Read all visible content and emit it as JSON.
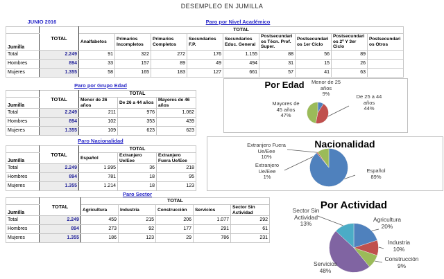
{
  "page": {
    "title": "DESEMPLEO EN JUMILLA"
  },
  "colors": {
    "table_title_blue": "#2929c8",
    "total_value_navy": "#26269b",
    "total_cell_bg": "#ececec",
    "pie_blue": "#4F81BD",
    "pie_red": "#C0504D",
    "pie_green": "#9BBB59",
    "pie_purple": "#8064A2",
    "pie_cyan": "#4BACC6"
  },
  "tables": {
    "nivel": {
      "corner_label": "JUNIO 2016",
      "title": "Paro por Nivel Académico",
      "entity_label": "Jumilla",
      "total_col_label": "TOTAL",
      "group_label": "TOTAL",
      "columns": [
        "Analfabetos",
        "Primarios Incompletos",
        "Primarios Completos",
        "Secundarios F.P.",
        "Secundarios Educ. General",
        "Postsecundarios Técn. Prof. Super.",
        "Postsecundarios 1er Ciclo",
        "Postsecundarios 2º Y 3er Ciclo",
        "Postsecundarios Otros"
      ],
      "rows": [
        {
          "label": "Total",
          "total": "2.249",
          "values": [
            "91",
            "322",
            "272",
            "176",
            "1.155",
            "88",
            "56",
            "89",
            ""
          ]
        },
        {
          "label": "Hombres",
          "total": "894",
          "values": [
            "33",
            "157",
            "89",
            "49",
            "494",
            "31",
            "15",
            "26",
            ""
          ]
        },
        {
          "label": "Mujeres",
          "total": "1.355",
          "values": [
            "58",
            "165",
            "183",
            "127",
            "661",
            "57",
            "41",
            "63",
            ""
          ]
        }
      ]
    },
    "edad": {
      "title": "Paro por Grupo Edad",
      "entity_label": "Jumilla",
      "total_col_label": "TOTAL",
      "group_label": "TOTAL",
      "columns": [
        "Menor de 26 años",
        "De 26 a 44 años",
        "Mayores de 46 años"
      ],
      "rows": [
        {
          "label": "Total",
          "total": "2.249",
          "values": [
            "211",
            "976",
            "1.062"
          ]
        },
        {
          "label": "Hombres",
          "total": "894",
          "values": [
            "102",
            "353",
            "439"
          ]
        },
        {
          "label": "Mujeres",
          "total": "1.355",
          "values": [
            "109",
            "623",
            "623"
          ]
        }
      ]
    },
    "nacionalidad": {
      "title": "Paro Nacionalidad",
      "entity_label": "Jumilla",
      "total_col_label": "TOTAL",
      "group_label": "TOTAL",
      "columns": [
        "Español",
        "Extranjero Ue/Eee",
        "Extranjero Fuera Ue/Eee"
      ],
      "rows": [
        {
          "label": "Total",
          "total": "2.249",
          "values": [
            "1.995",
            "36",
            "218"
          ]
        },
        {
          "label": "Hombres",
          "total": "894",
          "values": [
            "781",
            "18",
            "95"
          ]
        },
        {
          "label": "Mujeres",
          "total": "1.355",
          "values": [
            "1.214",
            "18",
            "123"
          ]
        }
      ]
    },
    "sector": {
      "title": "Paro Sector",
      "entity_label": "Jumilla",
      "total_col_label": "TOTAL",
      "group_label": "TOTAL",
      "columns": [
        "Agricultura",
        "Industria",
        "Construcción",
        "Servicios",
        "Sector Sin Actividad"
      ],
      "rows": [
        {
          "label": "Total",
          "total": "2.249",
          "values": [
            "459",
            "215",
            "206",
            "1.077",
            "292"
          ]
        },
        {
          "label": "Hombres",
          "total": "894",
          "values": [
            "273",
            "92",
            "177",
            "291",
            "61"
          ]
        },
        {
          "label": "Mujeres",
          "total": "1.355",
          "values": [
            "186",
            "123",
            "29",
            "786",
            "231"
          ]
        }
      ]
    }
  },
  "chart_data": [
    {
      "type": "pie",
      "title": "Por Edad",
      "labels": [
        "Menor de 25 años",
        "De 25 a 44 años",
        "Mayores de 45 años"
      ],
      "values": [
        9,
        44,
        47
      ],
      "unit": "%",
      "colors": [
        "#4F81BD",
        "#C0504D",
        "#9BBB59"
      ],
      "legend_position": "callouts",
      "callouts": [
        {
          "text": "Menor de 25\naños\n9%"
        },
        {
          "text": "De 25 a 44\naños\n44%"
        },
        {
          "text": "Mayores de\n45 años\n47%"
        }
      ]
    },
    {
      "type": "pie",
      "title": "Nacionalidad",
      "labels": [
        "Español",
        "Extranjero Ue/Eee",
        "Extranjero Fuera Ue/Eee"
      ],
      "values": [
        89,
        1,
        10
      ],
      "unit": "%",
      "colors": [
        "#4F81BD",
        "#C0504D",
        "#9BBB59"
      ],
      "legend_position": "callouts",
      "callouts": [
        {
          "text": "Extranjero Fuera\nUe/Eee\n10%"
        },
        {
          "text": "Extranjero\nUe/Eee\n1%"
        },
        {
          "text": "Español\n89%"
        }
      ]
    },
    {
      "type": "pie",
      "title": "Por Actividad",
      "labels": [
        "Agricultura",
        "Industria",
        "Construcción",
        "Servicios",
        "Sector Sin Actividad"
      ],
      "values": [
        20,
        10,
        9,
        48,
        13
      ],
      "unit": "%",
      "colors": [
        "#4F81BD",
        "#C0504D",
        "#9BBB59",
        "#8064A2",
        "#4BACC6"
      ],
      "legend_position": "callouts",
      "callouts": [
        {
          "text": "Sector Sin\nActividad\n13%"
        },
        {
          "text": "Agricultura\n20%"
        },
        {
          "text": "Industria\n10%"
        },
        {
          "text": "Construcción\n9%"
        },
        {
          "text": "Servicios\n48%"
        }
      ]
    }
  ]
}
